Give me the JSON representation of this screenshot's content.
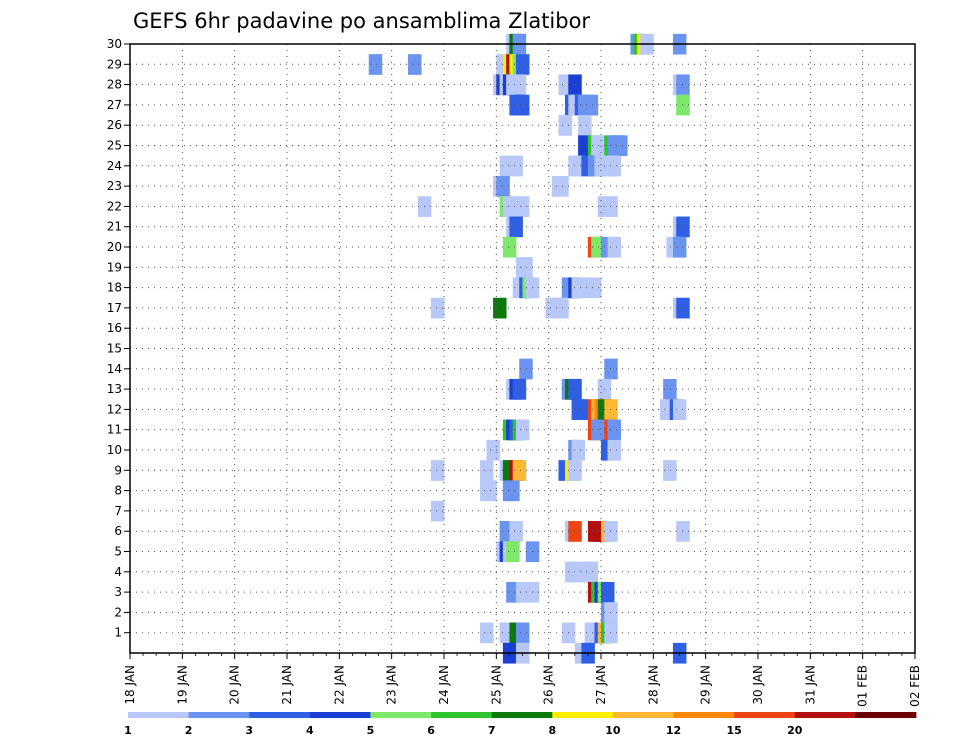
{
  "chart_data": {
    "type": "heatmap",
    "title": "GEFS 6hr padavine po ansamblima Zlatibor",
    "xlabel": "",
    "ylabel": "",
    "x_tick_labels": [
      "18 JAN",
      "19 JAN",
      "20 JAN",
      "21 JAN",
      "22 JAN",
      "23 JAN",
      "24 JAN",
      "25 JAN",
      "26 JAN",
      "27 JAN",
      "28 JAN",
      "29 JAN",
      "30 JAN",
      "31 JAN",
      "01 FEB",
      "02 FEB"
    ],
    "y_tick_labels": [
      "1",
      "2",
      "3",
      "4",
      "5",
      "6",
      "7",
      "8",
      "9",
      "10",
      "11",
      "12",
      "13",
      "14",
      "15",
      "16",
      "17",
      "18",
      "19",
      "20",
      "21",
      "22",
      "23",
      "24",
      "25",
      "26",
      "27",
      "28",
      "29",
      "30"
    ],
    "x_range": [
      0,
      15
    ],
    "y_range": [
      0,
      30
    ],
    "steps_per_day": 4,
    "colorbar": {
      "tick_labels": [
        "1",
        "2",
        "3",
        "4",
        "5",
        "6",
        "7",
        "8",
        "10",
        "12",
        "15",
        "20"
      ],
      "colors": [
        "#b8c8f8",
        "#6a94f0",
        "#2e5fe4",
        "#1b3fd4",
        "#7de86a",
        "#2ec42e",
        "#0b7a0b",
        "#ffee00",
        "#ffb833",
        "#ff8800",
        "#ee4411",
        "#b31111",
        "#6b0000"
      ]
    },
    "cells": [
      [
        30,
        28.75,
        0
      ],
      [
        30,
        29.0,
        6
      ],
      [
        30,
        29.25,
        1
      ],
      [
        30,
        38.25,
        1
      ],
      [
        30,
        38.5,
        5
      ],
      [
        30,
        38.75,
        7
      ],
      [
        30,
        39.0,
        0
      ],
      [
        30,
        41.5,
        1
      ],
      [
        29,
        18.25,
        1
      ],
      [
        29,
        21.25,
        1
      ],
      [
        29,
        28.0,
        0
      ],
      [
        29,
        28.5,
        7
      ],
      [
        29,
        28.75,
        11
      ],
      [
        29,
        29.0,
        7
      ],
      [
        29,
        29.25,
        4
      ],
      [
        29,
        29.5,
        2
      ],
      [
        28,
        27.75,
        0
      ],
      [
        28,
        28.0,
        3
      ],
      [
        28,
        28.25,
        0
      ],
      [
        28,
        28.5,
        3
      ],
      [
        28,
        28.75,
        0
      ],
      [
        28,
        29.0,
        0
      ],
      [
        28,
        29.25,
        0
      ],
      [
        28,
        32.75,
        0
      ],
      [
        28,
        33.5,
        3
      ],
      [
        28,
        41.5,
        0
      ],
      [
        28,
        41.75,
        1
      ],
      [
        27,
        29.0,
        2
      ],
      [
        27,
        29.25,
        2
      ],
      [
        27,
        29.5,
        2
      ],
      [
        27,
        33.25,
        2
      ],
      [
        27,
        33.5,
        0
      ],
      [
        27,
        33.75,
        0
      ],
      [
        27,
        34.0,
        2
      ],
      [
        27,
        34.25,
        1
      ],
      [
        27,
        34.5,
        1
      ],
      [
        27,
        34.75,
        1
      ],
      [
        27,
        41.75,
        4
      ],
      [
        26,
        32.75,
        0
      ],
      [
        26,
        34.25,
        0
      ],
      [
        25,
        34.25,
        3
      ],
      [
        25,
        35.0,
        5
      ],
      [
        25,
        35.25,
        0
      ],
      [
        25,
        36.25,
        5
      ],
      [
        25,
        36.5,
        1
      ],
      [
        25,
        36.75,
        1
      ],
      [
        25,
        37.0,
        1
      ],
      [
        24,
        28.25,
        0
      ],
      [
        24,
        29.0,
        0
      ],
      [
        24,
        33.5,
        0
      ],
      [
        24,
        33.75,
        0
      ],
      [
        24,
        34.5,
        2
      ],
      [
        24,
        35.0,
        1
      ],
      [
        24,
        35.5,
        0
      ],
      [
        24,
        36.0,
        0
      ],
      [
        24,
        36.25,
        0
      ],
      [
        24,
        36.5,
        0
      ],
      [
        23,
        27.75,
        0
      ],
      [
        23,
        28.0,
        1
      ],
      [
        23,
        32.25,
        0
      ],
      [
        23,
        32.5,
        0
      ],
      [
        22,
        22.0,
        0
      ],
      [
        22,
        28.25,
        4
      ],
      [
        22,
        28.5,
        0
      ],
      [
        22,
        28.75,
        0
      ],
      [
        22,
        29.5,
        0
      ],
      [
        22,
        35.75,
        0
      ],
      [
        22,
        36.25,
        0
      ],
      [
        21,
        28.75,
        0
      ],
      [
        21,
        29.0,
        2
      ],
      [
        21,
        41.5,
        0
      ],
      [
        21,
        41.75,
        2
      ],
      [
        20,
        28.5,
        4
      ],
      [
        20,
        35.0,
        10
      ],
      [
        20,
        35.25,
        4
      ],
      [
        20,
        36.0,
        1
      ],
      [
        20,
        36.5,
        0
      ],
      [
        20,
        41.0,
        0
      ],
      [
        20,
        41.25,
        0
      ],
      [
        20,
        41.5,
        1
      ],
      [
        19,
        29.5,
        0
      ],
      [
        19,
        29.75,
        0
      ],
      [
        18,
        29.25,
        0
      ],
      [
        18,
        29.5,
        0
      ],
      [
        18,
        29.75,
        2
      ],
      [
        18,
        30.0,
        4
      ],
      [
        18,
        30.25,
        0
      ],
      [
        18,
        33.0,
        1
      ],
      [
        18,
        33.25,
        1
      ],
      [
        18,
        33.5,
        3
      ],
      [
        18,
        33.75,
        0
      ],
      [
        18,
        34.0,
        0
      ],
      [
        18,
        35.0,
        0
      ],
      [
        17,
        23.0,
        0
      ],
      [
        17,
        27.75,
        6
      ],
      [
        17,
        31.75,
        0
      ],
      [
        17,
        32.25,
        0
      ],
      [
        17,
        32.5,
        0
      ],
      [
        17,
        41.5,
        0
      ],
      [
        17,
        41.75,
        2
      ],
      [
        14,
        29.75,
        1
      ],
      [
        14,
        36.25,
        1
      ],
      [
        13,
        28.75,
        0
      ],
      [
        13,
        29.0,
        3
      ],
      [
        13,
        29.25,
        2
      ],
      [
        13,
        33.0,
        1
      ],
      [
        13,
        33.25,
        6
      ],
      [
        13,
        33.5,
        2
      ],
      [
        13,
        35.75,
        0
      ],
      [
        13,
        40.75,
        1
      ],
      [
        12,
        33.75,
        2
      ],
      [
        12,
        34.0,
        2
      ],
      [
        12,
        35.0,
        10
      ],
      [
        12,
        35.25,
        8
      ],
      [
        12,
        35.5,
        9
      ],
      [
        12,
        35.75,
        6
      ],
      [
        12,
        36.25,
        8
      ],
      [
        12,
        40.5,
        0
      ],
      [
        12,
        40.75,
        0
      ],
      [
        12,
        41.0,
        0
      ],
      [
        12,
        41.25,
        2
      ],
      [
        12,
        41.5,
        0
      ],
      [
        11,
        28.5,
        5
      ],
      [
        11,
        28.75,
        3
      ],
      [
        11,
        29.0,
        2
      ],
      [
        11,
        29.25,
        5
      ],
      [
        11,
        29.5,
        0
      ],
      [
        11,
        35.0,
        10
      ],
      [
        11,
        35.25,
        1
      ],
      [
        11,
        36.25,
        10
      ],
      [
        11,
        36.5,
        1
      ],
      [
        10,
        27.25,
        0
      ],
      [
        10,
        33.5,
        1
      ],
      [
        10,
        33.75,
        0
      ],
      [
        10,
        36.0,
        2
      ],
      [
        10,
        36.25,
        2
      ],
      [
        10,
        36.5,
        0
      ],
      [
        9,
        23.0,
        0
      ],
      [
        9,
        26.75,
        0
      ],
      [
        9,
        28.25,
        0
      ],
      [
        9,
        28.5,
        6
      ],
      [
        9,
        28.75,
        6
      ],
      [
        9,
        29.0,
        11
      ],
      [
        9,
        29.25,
        8
      ],
      [
        9,
        32.75,
        2
      ],
      [
        9,
        33.25,
        7
      ],
      [
        9,
        33.5,
        0
      ],
      [
        9,
        40.75,
        0
      ],
      [
        8,
        26.75,
        0
      ],
      [
        8,
        27.0,
        0
      ],
      [
        8,
        28.5,
        1
      ],
      [
        8,
        28.75,
        1
      ],
      [
        7,
        23.0,
        0
      ],
      [
        6,
        28.25,
        1
      ],
      [
        6,
        29.0,
        0
      ],
      [
        6,
        33.25,
        0
      ],
      [
        6,
        33.5,
        10
      ],
      [
        6,
        35.0,
        11
      ],
      [
        6,
        35.25,
        11
      ],
      [
        6,
        35.5,
        11
      ],
      [
        6,
        35.75,
        11
      ],
      [
        6,
        36.0,
        8
      ],
      [
        6,
        36.25,
        0
      ],
      [
        6,
        41.75,
        0
      ],
      [
        5,
        28.0,
        0
      ],
      [
        5,
        28.25,
        3
      ],
      [
        5,
        28.5,
        0
      ],
      [
        5,
        28.75,
        4
      ],
      [
        5,
        30.25,
        1
      ],
      [
        4,
        33.25,
        0
      ],
      [
        4,
        33.5,
        0
      ],
      [
        4,
        34.5,
        0
      ],
      [
        4,
        34.75,
        0
      ],
      [
        3,
        28.75,
        1
      ],
      [
        3,
        29.5,
        0
      ],
      [
        3,
        30.25,
        0
      ],
      [
        3,
        35.0,
        11
      ],
      [
        3,
        35.25,
        5
      ],
      [
        3,
        35.5,
        3
      ],
      [
        3,
        35.75,
        4
      ],
      [
        3,
        36.0,
        2
      ],
      [
        2,
        36.0,
        1
      ],
      [
        2,
        36.25,
        0
      ],
      [
        1,
        26.75,
        0
      ],
      [
        1,
        28.25,
        0
      ],
      [
        1,
        29.0,
        6
      ],
      [
        1,
        29.25,
        6
      ],
      [
        1,
        29.5,
        1
      ],
      [
        1,
        33.0,
        0
      ],
      [
        1,
        34.75,
        0
      ],
      [
        1,
        35.25,
        0
      ],
      [
        1,
        35.5,
        2
      ],
      [
        1,
        35.75,
        8
      ],
      [
        1,
        36.0,
        5
      ],
      [
        1,
        36.25,
        0
      ],
      [
        0,
        28.5,
        3
      ],
      [
        0,
        29.5,
        0
      ],
      [
        0,
        34.0,
        0
      ],
      [
        0,
        34.5,
        2
      ],
      [
        0,
        41.5,
        2
      ]
    ]
  }
}
